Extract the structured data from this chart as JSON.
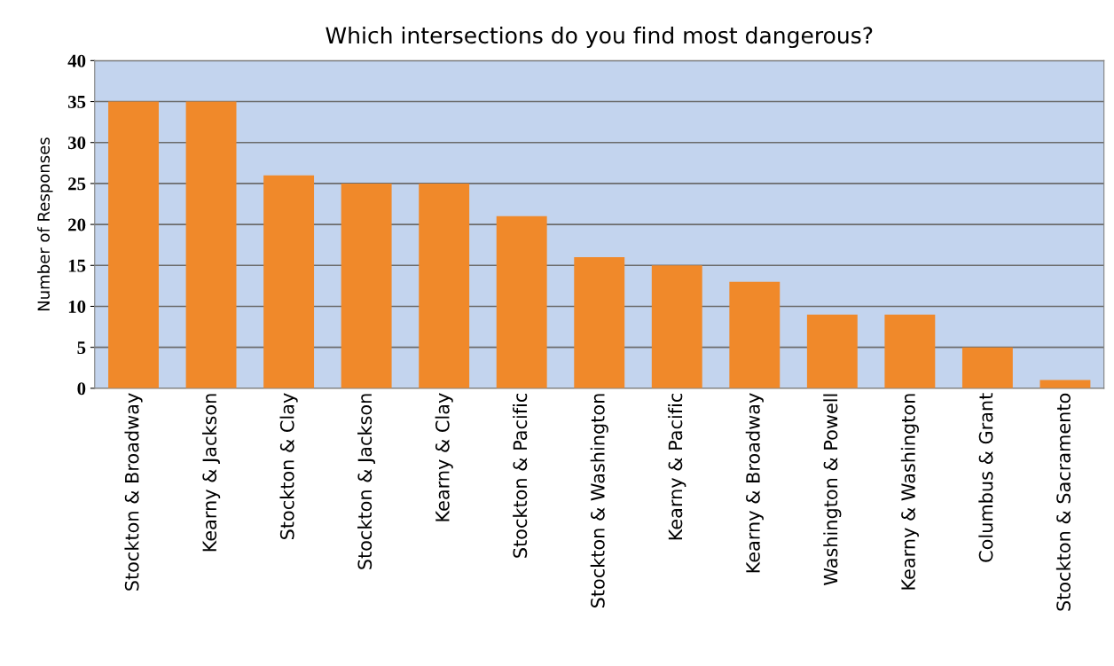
{
  "chart_data": {
    "type": "bar",
    "title": "Which intersections do you find most dangerous?",
    "ylabel": "Number of Responses",
    "categories": [
      "Stockton & Broadway",
      "Kearny & Jackson",
      "Stockton & Clay",
      "Stockton & Jackson",
      "Kearny & Clay",
      "Stockton & Pacific",
      "Stockton & Washington",
      "Kearny & Pacific",
      "Kearny & Broadway",
      "Washington & Powell",
      "Kearny & Washington",
      "Columbus & Grant",
      "Stockton & Sacramento"
    ],
    "values": [
      35,
      35,
      26,
      25,
      25,
      21,
      16,
      15,
      13,
      9,
      9,
      5,
      1
    ],
    "color": "#f0892a",
    "ylim": [
      0,
      40
    ],
    "yticks": [
      0,
      5,
      10,
      15,
      20,
      25,
      30,
      35,
      40
    ],
    "grid": "y"
  }
}
